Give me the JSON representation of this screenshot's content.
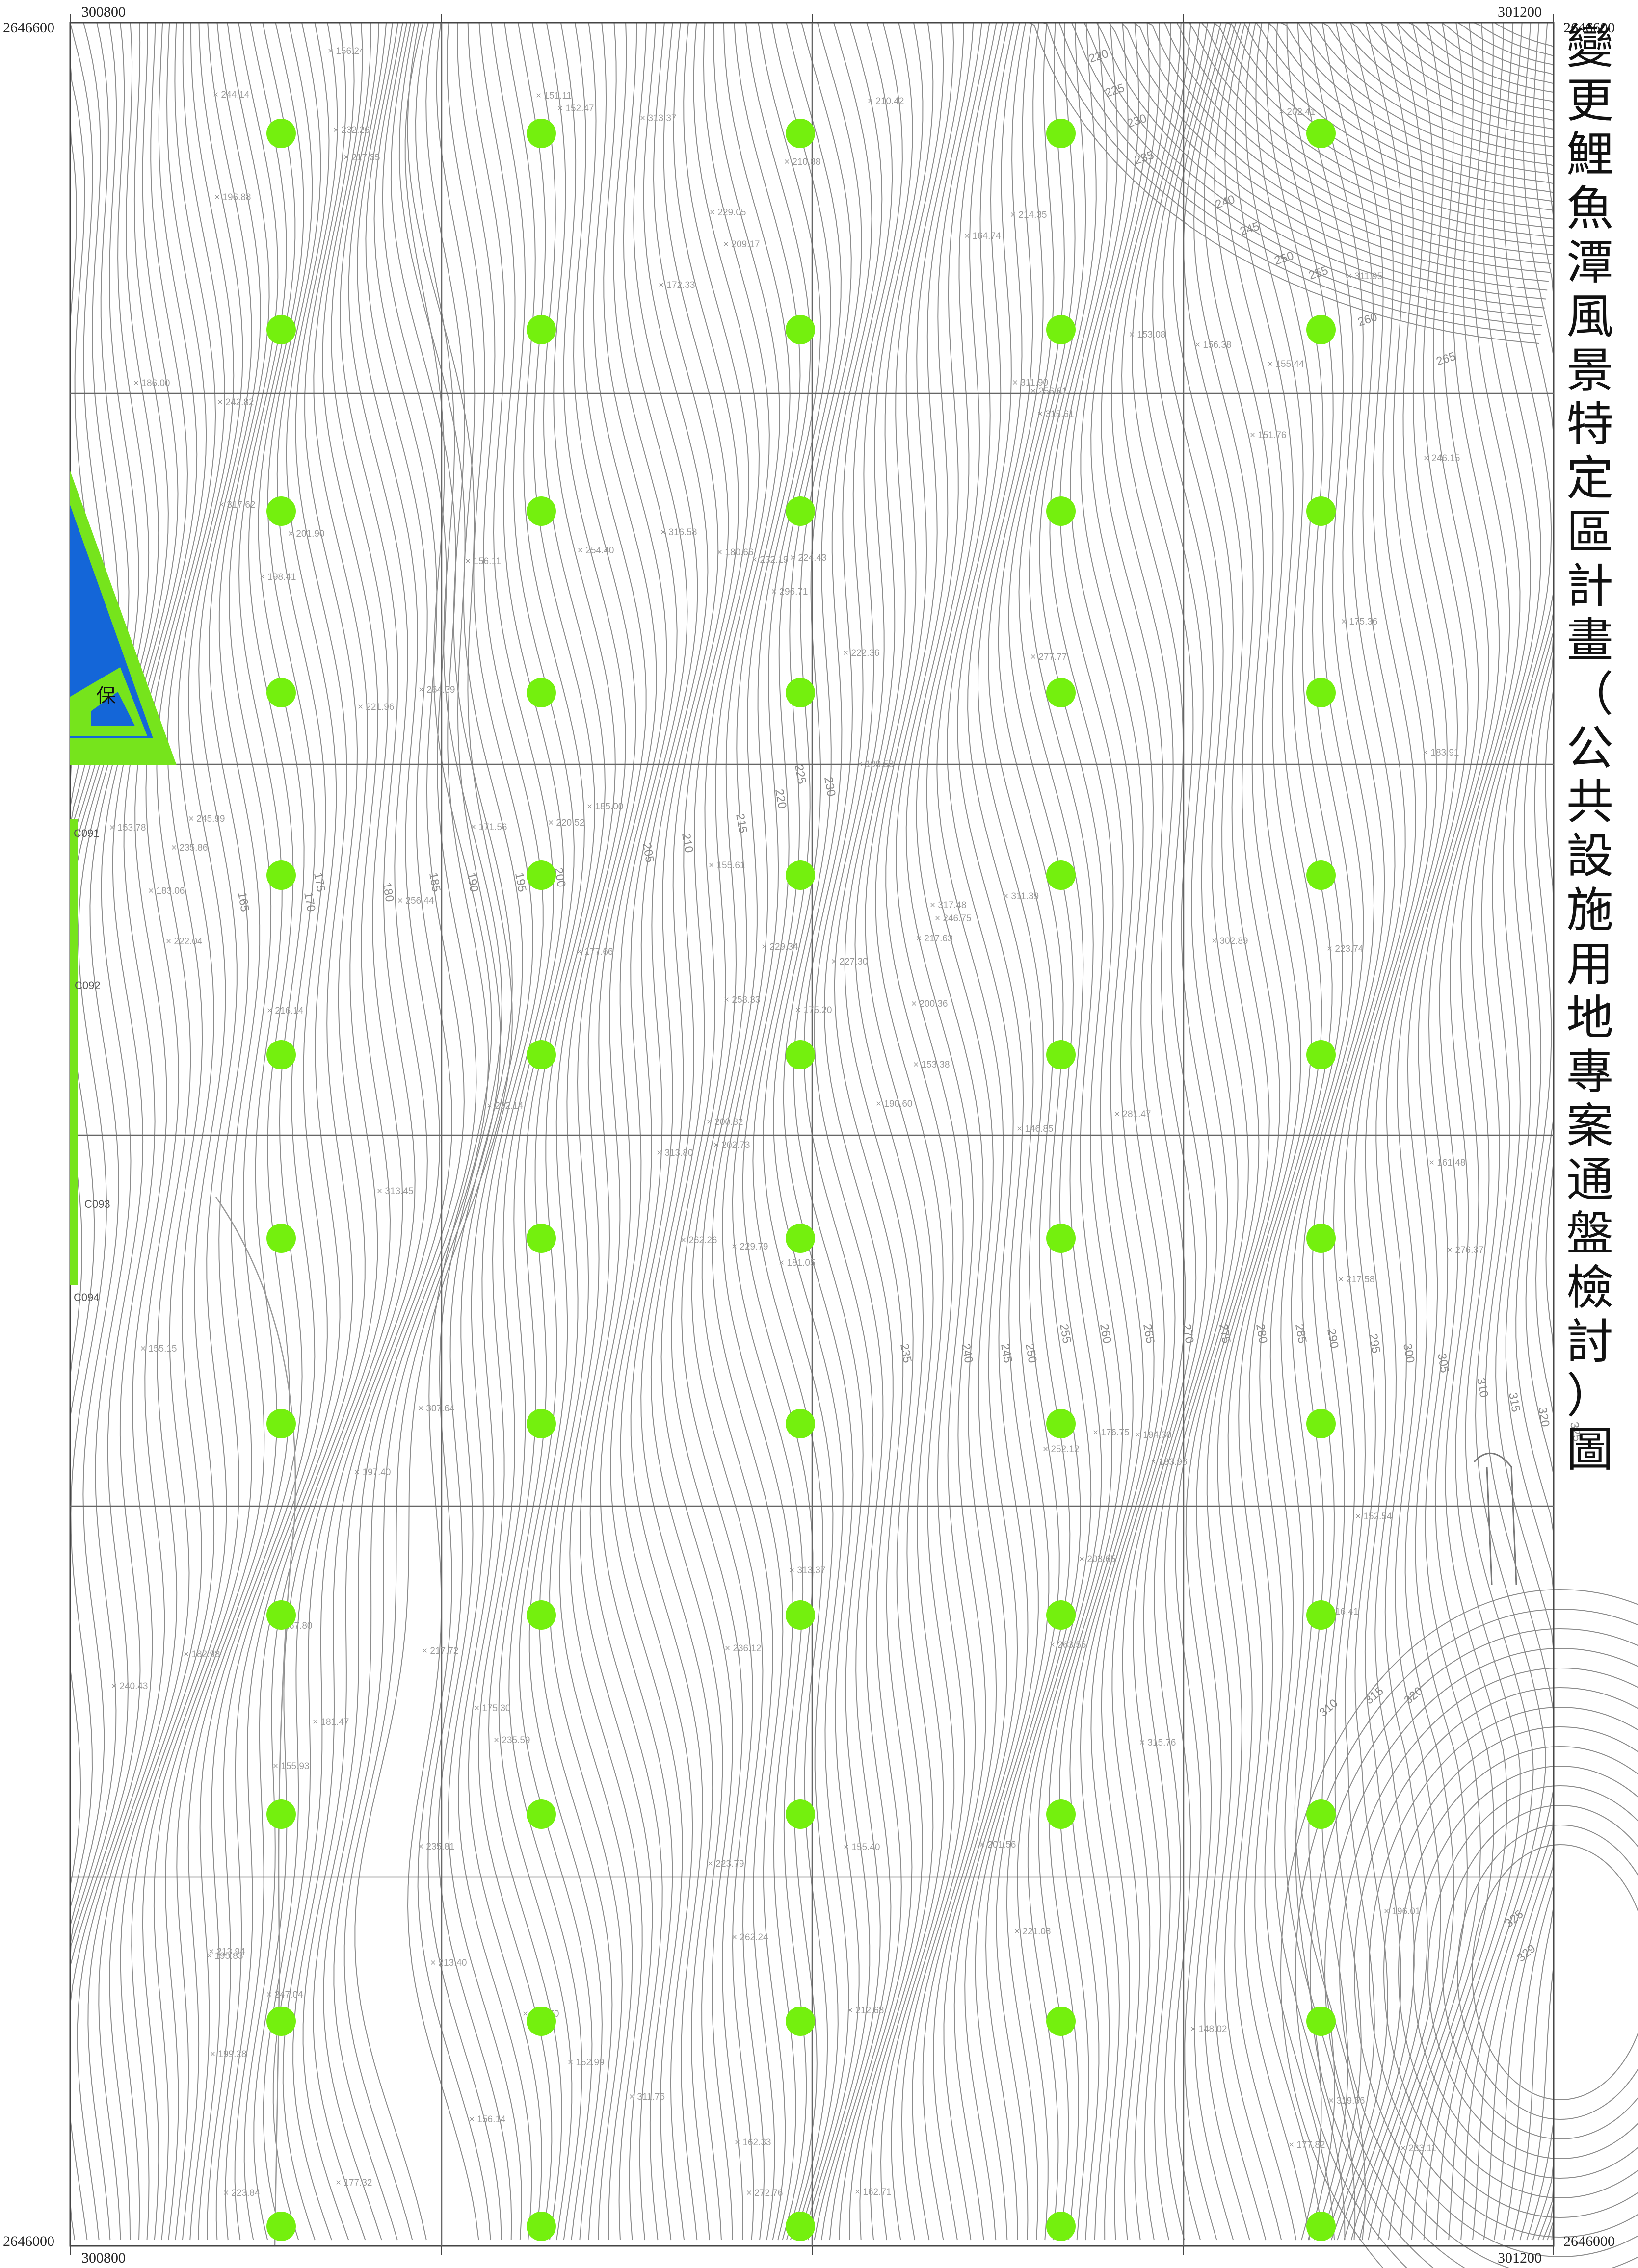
{
  "map": {
    "title_chars": [
      "變",
      "更",
      "鯉",
      "魚",
      "潭",
      "風",
      "景",
      "特",
      "定",
      "區",
      "計",
      "畫",
      "（",
      "公",
      "共",
      "設",
      "施",
      "用",
      "地",
      "專",
      "案",
      "通",
      "盤",
      "檢",
      "討",
      "）",
      "圖"
    ],
    "coordinates": {
      "top_left_x": "300800",
      "top_right_x": "301200",
      "bottom_left_x": "300800",
      "bottom_right_x": "301200",
      "left_top_y": "2646600",
      "right_top_y": "2646600",
      "left_bottom_y": "2646000",
      "right_bottom_y": "2646000"
    },
    "zone_label": "保",
    "point_codes": [
      "C091",
      "C092",
      "C093",
      "C094"
    ],
    "contour_values": [
      "220",
      "225",
      "230",
      "235",
      "240",
      "245",
      "250",
      "255",
      "260",
      "265",
      "165",
      "170",
      "175",
      "180",
      "185",
      "190",
      "195",
      "200",
      "205",
      "210",
      "215",
      "220",
      "225",
      "230",
      "235",
      "240",
      "245",
      "250",
      "255",
      "260",
      "265",
      "270",
      "275",
      "280",
      "285",
      "290",
      "295",
      "300",
      "305",
      "310",
      "315",
      "320",
      "325",
      "310",
      "315",
      "320",
      "325",
      "329"
    ],
    "elevation_points": [
      "181.05",
      "198.41",
      "202.73",
      "213.94",
      "217.63",
      "235.59",
      "214.35",
      "224.43",
      "256.61",
      "190.60",
      "217.35",
      "233.11",
      "216.14",
      "246.15",
      "262.26",
      "277.77",
      "177.32",
      "180.66",
      "190.58",
      "181.47",
      "185.00",
      "199.28",
      "213.40",
      "232.19",
      "246.75",
      "183.96",
      "201.90",
      "209.17",
      "222.04",
      "252.12",
      "183.91",
      "200.82",
      "223.79",
      "258.33",
      "156.11",
      "153.08",
      "175.30",
      "177.82",
      "196.01",
      "194.30",
      "210.42",
      "220.52",
      "256.44",
      "263.55",
      "156.14",
      "153.78",
      "200.36",
      "223.84",
      "262.24",
      "153.38",
      "155.93",
      "175.36",
      "186.00",
      "203.65",
      "221.08",
      "235.81",
      "232.26",
      "244.14",
      "155.40",
      "155.44",
      "210.88",
      "232.14",
      "245.99",
      "264.39",
      "156.38",
      "156.24",
      "164.74",
      "172.33",
      "229.34",
      "240.43",
      "236.12",
      "152.99",
      "176.75",
      "171.56",
      "195.83",
      "196.88",
      "221.96",
      "155.15",
      "155.61",
      "212.68",
      "227.30",
      "247.04",
      "146.85",
      "152.54",
      "162.33",
      "223.74",
      "313.37",
      "148.02",
      "162.71",
      "201.56",
      "229.05",
      "276.37",
      "311.39",
      "315.76",
      "175.20",
      "216.41",
      "235.86",
      "272.76",
      "311.90",
      "315.61",
      "313.45",
      "151.11",
      "161.48",
      "183.06",
      "197.40",
      "217.72",
      "285.70",
      "317.48",
      "151.76",
      "177.66",
      "217.58",
      "242.82",
      "296.71",
      "313.80",
      "152.47",
      "182.98",
      "229.79",
      "311.95",
      "316.58",
      "313.37",
      "167.80",
      "202.41",
      "222.36",
      "254.40",
      "281.47",
      "307.64",
      "319.56",
      "311.76",
      "302.89",
      "317.62"
    ]
  }
}
